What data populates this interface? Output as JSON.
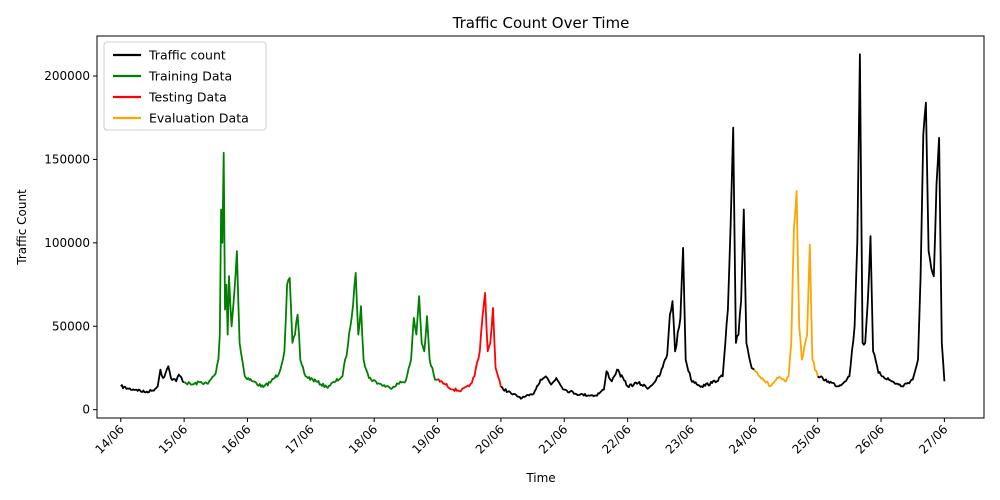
{
  "chart_data": {
    "type": "line",
    "title": "Traffic Count Over Time",
    "xlabel": "Time",
    "ylabel": "Traffic Count",
    "x_ticks": [
      "14/06",
      "15/06",
      "16/06",
      "17/06",
      "18/06",
      "19/06",
      "20/06",
      "21/06",
      "22/06",
      "23/06",
      "24/06",
      "25/06",
      "26/06",
      "27/06"
    ],
    "y_ticks": [
      0,
      50000,
      100000,
      150000,
      200000
    ],
    "xlim": [
      "13/06 15:00",
      "27/06 15:00"
    ],
    "ylim": [
      -5000,
      224000
    ],
    "legend_position": "top-left",
    "grid": false,
    "series": [
      {
        "name": "Traffic count",
        "color": "#000000",
        "points": [
          [
            "14/06 00:00",
            14000
          ],
          [
            "14/06 03:00",
            12500
          ],
          [
            "14/06 06:00",
            12000
          ],
          [
            "14/06 09:00",
            10500
          ],
          [
            "14/06 12:00",
            11500
          ],
          [
            "14/06 14:00",
            14000
          ],
          [
            "14/06 15:00",
            24000
          ],
          [
            "14/06 16:00",
            19000
          ],
          [
            "14/06 17:00",
            22000
          ],
          [
            "14/06 18:00",
            26000
          ],
          [
            "14/06 19:00",
            19000
          ],
          [
            "14/06 21:00",
            17000
          ],
          [
            "14/06 22:00",
            21000
          ],
          [
            "15/06 00:00",
            16500
          ]
        ]
      },
      {
        "name": "Training Data",
        "color": "#008000",
        "points": [
          [
            "15/06 00:00",
            16500
          ],
          [
            "15/06 03:00",
            15000
          ],
          [
            "15/06 06:00",
            16500
          ],
          [
            "15/06 09:00",
            15500
          ],
          [
            "15/06 12:00",
            22000
          ],
          [
            "15/06 13:00",
            30000
          ],
          [
            "15/06 13:30",
            45000
          ],
          [
            "15/06 14:00",
            120000
          ],
          [
            "15/06 14:30",
            100000
          ],
          [
            "15/06 15:00",
            154000
          ],
          [
            "15/06 15:30",
            60000
          ],
          [
            "15/06 16:00",
            75000
          ],
          [
            "15/06 16:30",
            45000
          ],
          [
            "15/06 17:00",
            80000
          ],
          [
            "15/06 18:00",
            50000
          ],
          [
            "15/06 19:00",
            70000
          ],
          [
            "15/06 20:00",
            95000
          ],
          [
            "15/06 21:00",
            40000
          ],
          [
            "15/06 23:00",
            20000
          ],
          [
            "16/06 02:00",
            17000
          ],
          [
            "16/06 06:00",
            13500
          ],
          [
            "16/06 09:00",
            17000
          ],
          [
            "16/06 12:00",
            22000
          ],
          [
            "16/06 14:00",
            35000
          ],
          [
            "16/06 15:00",
            75000
          ],
          [
            "16/06 16:00",
            79000
          ],
          [
            "16/06 17:00",
            40000
          ],
          [
            "16/06 18:00",
            45000
          ],
          [
            "16/06 19:00",
            57000
          ],
          [
            "16/06 20:00",
            30000
          ],
          [
            "16/06 22:00",
            20000
          ],
          [
            "17/06 02:00",
            17000
          ],
          [
            "17/06 06:00",
            13500
          ],
          [
            "17/06 09:00",
            16500
          ],
          [
            "17/06 12:00",
            20000
          ],
          [
            "17/06 14:00",
            38000
          ],
          [
            "17/06 16:00",
            63000
          ],
          [
            "17/06 17:00",
            82000
          ],
          [
            "17/06 18:00",
            45000
          ],
          [
            "17/06 19:00",
            62000
          ],
          [
            "17/06 20:00",
            30000
          ],
          [
            "17/06 22:00",
            19000
          ],
          [
            "18/06 02:00",
            15500
          ],
          [
            "18/06 06:00",
            13000
          ],
          [
            "18/06 09:00",
            15500
          ],
          [
            "18/06 12:00",
            17500
          ],
          [
            "18/06 14:00",
            30000
          ],
          [
            "18/06 15:00",
            55000
          ],
          [
            "18/06 16:00",
            45000
          ],
          [
            "18/06 17:00",
            68000
          ],
          [
            "18/06 18:00",
            40000
          ],
          [
            "18/06 19:00",
            35000
          ],
          [
            "18/06 20:00",
            56000
          ],
          [
            "18/06 21:00",
            30000
          ],
          [
            "18/06 23:00",
            18000
          ],
          [
            "19/06 00:00",
            18000
          ]
        ]
      },
      {
        "name": "Testing Data",
        "color": "#ff0000",
        "points": [
          [
            "19/06 00:00",
            18000
          ],
          [
            "19/06 03:00",
            15000
          ],
          [
            "19/06 06:00",
            12000
          ],
          [
            "19/06 09:00",
            11500
          ],
          [
            "19/06 12:00",
            14000
          ],
          [
            "19/06 14:00",
            20000
          ],
          [
            "19/06 16:00",
            35000
          ],
          [
            "19/06 17:00",
            55000
          ],
          [
            "19/06 18:00",
            70000
          ],
          [
            "19/06 19:00",
            35000
          ],
          [
            "19/06 20:00",
            40000
          ],
          [
            "19/06 21:00",
            61000
          ],
          [
            "19/06 22:00",
            25000
          ],
          [
            "20/06 00:00",
            13500
          ]
        ]
      },
      {
        "name": "Traffic count",
        "color": "#000000",
        "points": [
          [
            "20/06 00:00",
            13500
          ],
          [
            "20/06 04:00",
            9500
          ],
          [
            "20/06 08:00",
            7000
          ],
          [
            "20/06 12:00",
            9000
          ],
          [
            "20/06 15:00",
            18000
          ],
          [
            "20/06 17:00",
            20000
          ],
          [
            "20/06 19:00",
            15000
          ],
          [
            "20/06 21:00",
            19000
          ],
          [
            "21/06 00:00",
            12000
          ],
          [
            "21/06 06:00",
            9000
          ],
          [
            "21/06 12:00",
            8500
          ],
          [
            "21/06 15:00",
            12000
          ],
          [
            "21/06 16:00",
            23000
          ],
          [
            "21/06 18:00",
            17000
          ],
          [
            "21/06 20:00",
            24000
          ],
          [
            "22/06 00:00",
            14000
          ],
          [
            "22/06 04:00",
            16000
          ],
          [
            "22/06 08:00",
            13000
          ],
          [
            "22/06 12:00",
            20000
          ],
          [
            "22/06 15:00",
            33000
          ],
          [
            "22/06 16:00",
            57000
          ],
          [
            "22/06 17:00",
            65000
          ],
          [
            "22/06 18:00",
            35000
          ],
          [
            "22/06 20:00",
            55000
          ],
          [
            "22/06 21:00",
            97000
          ],
          [
            "22/06 22:00",
            30000
          ],
          [
            "23/06 00:00",
            18000
          ],
          [
            "23/06 04:00",
            14000
          ],
          [
            "23/06 08:00",
            16000
          ],
          [
            "23/06 12:00",
            20000
          ],
          [
            "23/06 14:00",
            60000
          ],
          [
            "23/06 15:00",
            110000
          ],
          [
            "23/06 16:00",
            169000
          ],
          [
            "23/06 17:00",
            40000
          ],
          [
            "23/06 18:00",
            45000
          ],
          [
            "23/06 19:00",
            65000
          ],
          [
            "23/06 20:00",
            120000
          ],
          [
            "23/06 21:00",
            40000
          ],
          [
            "23/06 23:00",
            25000
          ],
          [
            "24/06 00:00",
            24000
          ]
        ]
      },
      {
        "name": "Evaluation Data",
        "color": "#ffa500",
        "points": [
          [
            "24/06 00:00",
            24000
          ],
          [
            "24/06 03:00",
            19000
          ],
          [
            "24/06 06:00",
            14000
          ],
          [
            "24/06 09:00",
            19000
          ],
          [
            "24/06 12:00",
            17000
          ],
          [
            "24/06 13:00",
            20000
          ],
          [
            "24/06 14:00",
            40000
          ],
          [
            "24/06 15:00",
            108000
          ],
          [
            "24/06 16:00",
            131000
          ],
          [
            "24/06 17:00",
            50000
          ],
          [
            "24/06 18:00",
            30000
          ],
          [
            "24/06 20:00",
            45000
          ],
          [
            "24/06 21:00",
            99000
          ],
          [
            "24/06 22:00",
            30000
          ],
          [
            "25/06 00:00",
            20000
          ]
        ]
      },
      {
        "name": "Traffic count",
        "color": "#000000",
        "points": [
          [
            "25/06 00:00",
            20000
          ],
          [
            "25/06 04:00",
            17000
          ],
          [
            "25/06 08:00",
            14000
          ],
          [
            "25/06 12:00",
            20000
          ],
          [
            "25/06 14:00",
            50000
          ],
          [
            "25/06 15:00",
            100000
          ],
          [
            "25/06 16:00",
            213000
          ],
          [
            "25/06 17:00",
            40000
          ],
          [
            "25/06 18:00",
            40000
          ],
          [
            "25/06 19:00",
            65000
          ],
          [
            "25/06 20:00",
            104000
          ],
          [
            "25/06 21:00",
            35000
          ],
          [
            "25/06 23:00",
            22000
          ],
          [
            "26/06 04:00",
            17000
          ],
          [
            "26/06 08:00",
            14000
          ],
          [
            "26/06 12:00",
            18000
          ],
          [
            "26/06 14:00",
            30000
          ],
          [
            "26/06 15:00",
            80000
          ],
          [
            "26/06 16:00",
            165000
          ],
          [
            "26/06 17:00",
            184000
          ],
          [
            "26/06 18:00",
            95000
          ],
          [
            "26/06 19:00",
            85000
          ],
          [
            "26/06 20:00",
            80000
          ],
          [
            "26/06 21:00",
            135000
          ],
          [
            "26/06 22:00",
            163000
          ],
          [
            "26/06 23:00",
            40000
          ],
          [
            "27/06 00:00",
            17000
          ]
        ]
      }
    ],
    "legend": [
      {
        "label": "Traffic count",
        "color": "#000000"
      },
      {
        "label": "Training Data",
        "color": "#008000"
      },
      {
        "label": "Testing Data",
        "color": "#ff0000"
      },
      {
        "label": "Evaluation Data",
        "color": "#ffa500"
      }
    ]
  }
}
